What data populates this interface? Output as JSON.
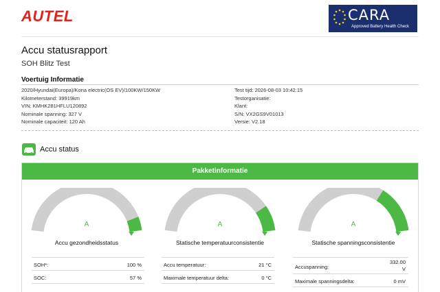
{
  "brand": {
    "autel": "AUTEL",
    "cara_word": "CARA",
    "cara_sub": "Approved Battery Health Check"
  },
  "report": {
    "title": "Accu statusrapport",
    "subtitle": "SOH Blitz Test",
    "vehicle_heading": "Voertuig Informatie"
  },
  "vehicle": {
    "left": [
      "2020/Hyundai(Europa)/Kona electric(OS EV)/100KW/150KW",
      "Kilometerstand: 39919km",
      "VIN: KMHK281HFLU120892",
      "Nominale spanning: 327 V",
      "Nominale capaciteit: 120 Ah"
    ],
    "right": [
      "Test tijd: 2026-08-03 10:42:15",
      "Testorganisatie:",
      "Klant:",
      "S/N: VX2GS9V01013",
      "Versie: V2.18"
    ]
  },
  "section": {
    "label": "Accu status",
    "panel_title": "Pakketinformatie"
  },
  "gauges": [
    {
      "grade": "A",
      "title": "Accu gezondheidsstatus",
      "level": 0.92
    },
    {
      "grade": "A",
      "title": "Statische temperatuurconsistentie",
      "level": 0.85
    },
    {
      "grade": "A",
      "title": "Statische spanningsconsistentie",
      "level": 0.72
    }
  ],
  "stats": {
    "health": [
      {
        "k": "SOH*:",
        "v": "100 %"
      },
      {
        "k": "SOC:",
        "v": "57 %"
      }
    ],
    "temperature": [
      {
        "k": "Accu temperatuur:",
        "v": "21 °C"
      },
      {
        "k": "Maximale temperatuur delta:",
        "v": "0 °C"
      }
    ],
    "voltage": [
      {
        "k": "Accuspanning:",
        "v": "332.00 V"
      },
      {
        "k": "Maximale spanningsdelta:",
        "v": "0 mV"
      }
    ]
  },
  "colors": {
    "brand_red": "#e2231a",
    "accent_green": "#4cb944",
    "gauge_grey": "#cfcfcf",
    "cara_blue": "#1b2f6e"
  }
}
